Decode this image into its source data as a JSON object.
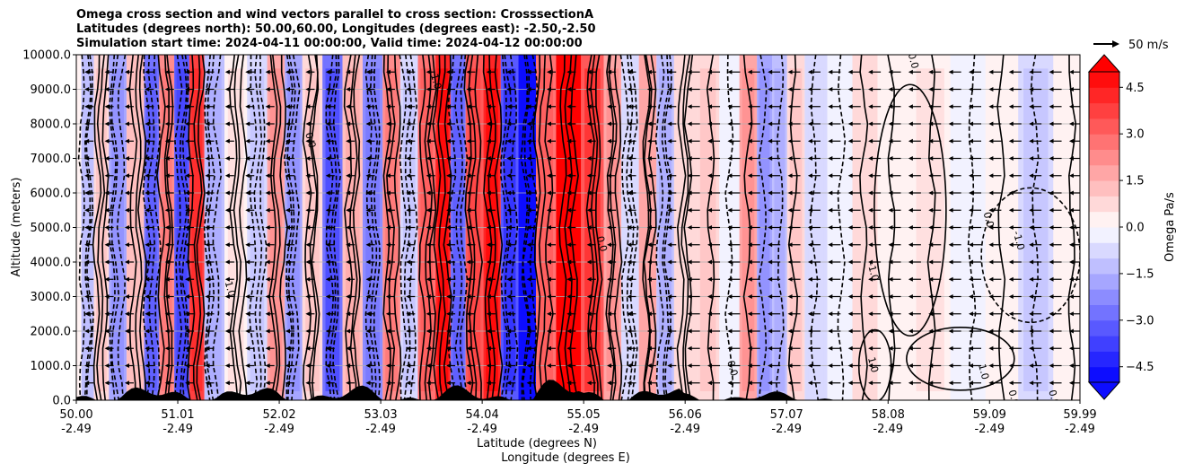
{
  "chart_data": {
    "type": "heatmap",
    "title_lines": [
      "Omega cross section and wind vectors parallel to cross section: CrosssectionA",
      "Latitudes (degrees north): 50.00,60.00, Longitudes (degrees east): -2.50,-2.50",
      "Simulation start time: 2024-04-11 00:00:00, Valid time: 2024-04-12 00:00:00"
    ],
    "ylabel": "Altitude (meters)",
    "xlabel_lines": [
      "Latitude (degrees N)",
      "Longitude (degrees E)"
    ],
    "x_ticks": [
      {
        "lat": "50.00",
        "lon": "-2.49"
      },
      {
        "lat": "51.01",
        "lon": "-2.49"
      },
      {
        "lat": "52.02",
        "lon": "-2.49"
      },
      {
        "lat": "53.03",
        "lon": "-2.49"
      },
      {
        "lat": "54.04",
        "lon": "-2.49"
      },
      {
        "lat": "55.05",
        "lon": "-2.49"
      },
      {
        "lat": "56.06",
        "lon": "-2.49"
      },
      {
        "lat": "57.07",
        "lon": "-2.49"
      },
      {
        "lat": "58.08",
        "lon": "-2.49"
      },
      {
        "lat": "59.09",
        "lon": "-2.49"
      },
      {
        "lat": "59.99",
        "lon": "-2.49"
      }
    ],
    "xlim": [
      50.0,
      59.99
    ],
    "y_ticks": [
      "0.0",
      "1000.0",
      "2000.0",
      "3000.0",
      "4000.0",
      "5000.0",
      "6000.0",
      "7000.0",
      "8000.0",
      "9000.0",
      "10000.0"
    ],
    "ylim": [
      0,
      10000
    ],
    "grid": "horizontal",
    "colorbar": {
      "label": "Omega Pa/s",
      "ticks": [
        "4.5",
        "3.0",
        "1.5",
        "0.0",
        "−1.5",
        "−3.0",
        "−4.5"
      ],
      "tick_values": [
        4.5,
        3.0,
        1.5,
        0.0,
        -1.5,
        -3.0,
        -4.5
      ],
      "range": [
        -5.0,
        5.0
      ],
      "levels": 20,
      "extend": "both",
      "colormap": "bwr"
    },
    "vector_key": {
      "label": "50 m/s",
      "placement": "top-right"
    },
    "omega_bands": [
      {
        "lat": 50.1,
        "v": -1.2
      },
      {
        "lat": 50.25,
        "v": 0.8
      },
      {
        "lat": 50.4,
        "v": -2.0
      },
      {
        "lat": 50.6,
        "v": 1.0
      },
      {
        "lat": 50.75,
        "v": -2.8
      },
      {
        "lat": 50.9,
        "v": 2.0
      },
      {
        "lat": 51.05,
        "v": -3.2
      },
      {
        "lat": 51.2,
        "v": 3.5
      },
      {
        "lat": 51.35,
        "v": -1.5
      },
      {
        "lat": 51.6,
        "v": 0.4
      },
      {
        "lat": 51.8,
        "v": -1.0
      },
      {
        "lat": 52.0,
        "v": 1.6
      },
      {
        "lat": 52.15,
        "v": -2.0
      },
      {
        "lat": 52.35,
        "v": 0.9
      },
      {
        "lat": 52.55,
        "v": -3.0
      },
      {
        "lat": 52.75,
        "v": 1.4
      },
      {
        "lat": 52.95,
        "v": -2.2
      },
      {
        "lat": 53.15,
        "v": 2.2
      },
      {
        "lat": 53.3,
        "v": -1.0
      },
      {
        "lat": 53.5,
        "v": 2.5
      },
      {
        "lat": 53.65,
        "v": 4.2
      },
      {
        "lat": 53.8,
        "v": -2.6
      },
      {
        "lat": 53.95,
        "v": 3.0
      },
      {
        "lat": 54.15,
        "v": 4.0
      },
      {
        "lat": 54.3,
        "v": -3.5
      },
      {
        "lat": 54.5,
        "v": -5.0
      },
      {
        "lat": 54.65,
        "v": 2.5
      },
      {
        "lat": 54.9,
        "v": 5.0
      },
      {
        "lat": 55.15,
        "v": 3.2
      },
      {
        "lat": 55.35,
        "v": 1.8
      },
      {
        "lat": 55.5,
        "v": -0.6
      },
      {
        "lat": 55.7,
        "v": 1.5
      },
      {
        "lat": 55.85,
        "v": -1.4
      },
      {
        "lat": 56.05,
        "v": 0.6
      },
      {
        "lat": 56.3,
        "v": 0.9
      },
      {
        "lat": 56.5,
        "v": -0.4
      },
      {
        "lat": 56.7,
        "v": 1.6
      },
      {
        "lat": 56.85,
        "v": -2.0
      },
      {
        "lat": 57.0,
        "v": -1.5
      },
      {
        "lat": 57.15,
        "v": 0.8
      },
      {
        "lat": 57.35,
        "v": -0.6
      },
      {
        "lat": 57.6,
        "v": -0.3
      },
      {
        "lat": 57.85,
        "v": 0.6
      },
      {
        "lat": 58.1,
        "v": 0.3
      },
      {
        "lat": 58.5,
        "v": 0.4
      },
      {
        "lat": 58.9,
        "v": -0.4
      },
      {
        "lat": 59.2,
        "v": 0.3
      },
      {
        "lat": 59.55,
        "v": -1.0
      },
      {
        "lat": 59.9,
        "v": 0.2
      }
    ],
    "contour_labels": [
      {
        "text": "0.0",
        "lat": 55.2,
        "alt": 4500
      },
      {
        "text": "1.0",
        "lat": 53.55,
        "alt": 9200
      },
      {
        "text": "-1.0",
        "lat": 57.9,
        "alt": 3700
      },
      {
        "text": "0.0",
        "lat": 58.3,
        "alt": 9800
      },
      {
        "text": "1.0",
        "lat": 57.9,
        "alt": 1000
      },
      {
        "text": "0.0",
        "lat": 59.05,
        "alt": 5200
      },
      {
        "text": "-1.0",
        "lat": 59.35,
        "alt": 4600
      },
      {
        "text": "1.0",
        "lat": 59.0,
        "alt": 800
      },
      {
        "text": "0.0",
        "lat": 59.3,
        "alt": 50
      },
      {
        "text": "0.0",
        "lat": 59.7,
        "alt": 50
      },
      {
        "text": "1.0",
        "lat": 51.5,
        "alt": 3200
      },
      {
        "text": "0.0",
        "lat": 52.3,
        "alt": 7500
      },
      {
        "text": "0.0",
        "lat": 56.5,
        "alt": 900
      }
    ]
  }
}
